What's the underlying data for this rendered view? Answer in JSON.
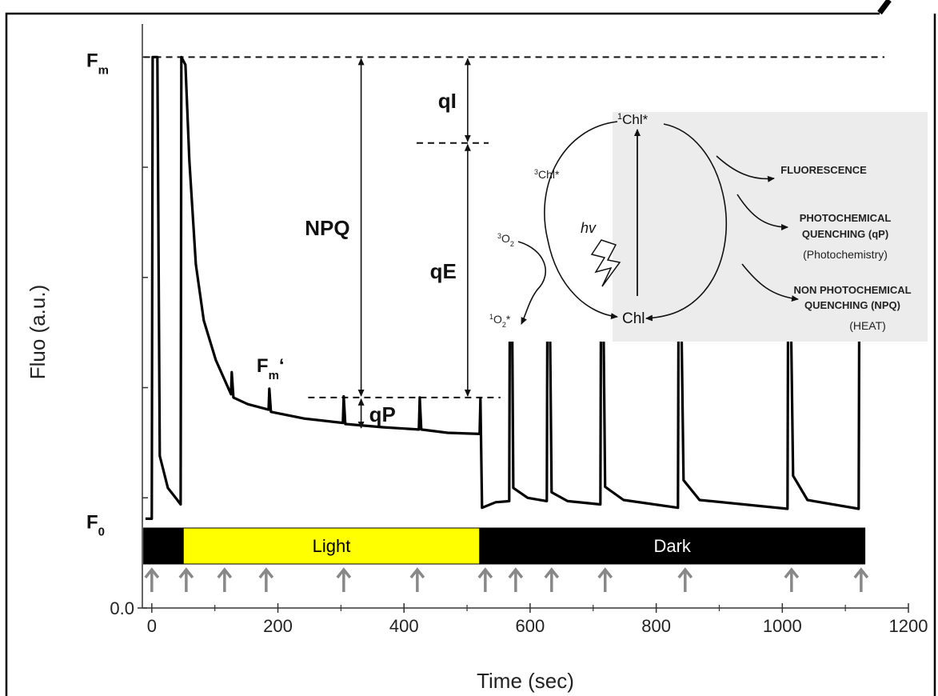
{
  "chart_data": {
    "type": "line",
    "y_title": "Fluo (a.u.)",
    "x_title": "Time (sec)",
    "xlim": [
      -15,
      1200
    ],
    "ylim": [
      0,
      5.3
    ],
    "xticks": [
      0,
      200,
      400,
      600,
      800,
      1000,
      1200
    ],
    "minor_xticks": [
      100,
      300,
      500,
      700,
      900,
      1100
    ],
    "yticks": [
      {
        "value": 0,
        "label": "0.0"
      }
    ],
    "minor_yticks": [
      1,
      2,
      3,
      4,
      5
    ],
    "color": "#000000",
    "x": [
      -10,
      0,
      1.3,
      8.9,
      12.7,
      25.4,
      40.6,
      45.7,
      46.9,
      53.3,
      59.6,
      69.8,
      82.4,
      101.5,
      125.6,
      126.8,
      129.4,
      152.2,
      185.2,
      186.4,
      189.0,
      241.0,
      303.1,
      304.4,
      306.9,
      367.8,
      423.6,
      424.9,
      427.4,
      469.3,
      520.0,
      521.2,
      523.8,
      545.3,
      566.9,
      568.2,
      570.7,
      573.3,
      596.2,
      626.5,
      627.8,
      630.3,
      634.1,
      659.5,
      711.5,
      712.7,
      715.2,
      719.0,
      748.3,
      834.5,
      835.8,
      838.3,
      843.4,
      868.7,
      1008.2,
      1009.5,
      1012.0,
      1017.1,
      1039.9,
      1121.1,
      1122.4,
      1125.0
    ],
    "values": [
      0.81,
      0.81,
      5.0,
      5.0,
      1.38,
      1.09,
      0.98,
      0.94,
      5.0,
      4.93,
      4.06,
      3.12,
      2.61,
      2.25,
      1.94,
      2.14,
      1.91,
      1.85,
      1.8,
      1.99,
      1.78,
      1.72,
      1.68,
      1.92,
      1.67,
      1.64,
      1.62,
      1.91,
      1.62,
      1.59,
      1.58,
      1.9,
      0.91,
      0.96,
      0.97,
      3.33,
      3.33,
      1.09,
      1.0,
      0.97,
      3.33,
      3.33,
      1.05,
      0.97,
      0.94,
      3.33,
      3.33,
      1.1,
      0.98,
      0.91,
      3.33,
      3.33,
      1.16,
      0.98,
      0.9,
      3.33,
      3.33,
      1.2,
      0.98,
      0.9,
      3.33,
      3.33
    ],
    "y_labels": [
      {
        "text": "F",
        "sub": "m",
        "value": 5.0
      },
      {
        "text": "F",
        "sub": "0",
        "value": 0.81
      }
    ],
    "fm_prime": {
      "text": "F",
      "sub": "m",
      "prime": "‘",
      "x": 184,
      "y": 2.14
    },
    "hlines": [
      {
        "value": 5.0,
        "start": -13,
        "end": 1162
      },
      {
        "value": 4.22,
        "start": 420,
        "end": 547
      },
      {
        "value": 1.91,
        "start": 248,
        "end": 553
      }
    ],
    "quenching": [
      {
        "label": "NPQ",
        "x": 332,
        "from": 5.0,
        "to": 1.91,
        "side": "left"
      },
      {
        "label": "qP",
        "x": 332,
        "from": 1.91,
        "to": 1.62,
        "side": "right"
      },
      {
        "label": "qI",
        "x": 501,
        "from": 5.0,
        "to": 4.22,
        "side": "left"
      },
      {
        "label": "qE",
        "x": 501,
        "from": 4.22,
        "to": 1.91,
        "side": "left"
      }
    ],
    "periods": [
      {
        "start": -13,
        "end": 50,
        "color": "#000000"
      },
      {
        "start": 50,
        "end": 520,
        "color": "#ffff00",
        "label": "Light"
      },
      {
        "start": 520,
        "end": 1131,
        "color": "#000000",
        "label": "Dark"
      }
    ],
    "pulse_times": [
      0,
      54.6,
      115.4,
      181.4,
      304.4,
      421.1,
      528.9,
      577.1,
      634.1,
      719.0,
      845.9,
      1014.6,
      1125.0
    ],
    "pulse_color": "#888888"
  },
  "inset": {
    "singlet": {
      "sup": "1",
      "text": "Chl*"
    },
    "triplet": {
      "sup": "3",
      "text": "Chl*"
    },
    "light": "hv",
    "oxygen": {
      "sup": "3",
      "text": "O",
      "sub": "2"
    },
    "singlet_oxygen": {
      "sup": "1",
      "text": "O",
      "sub": "2",
      "suffix": "*"
    },
    "ground": "Chl",
    "fluorescence": "FLUORESCENCE",
    "photochemical": [
      "PHOTOCHEMICAL",
      "QUENCHING (qP)",
      "(Photochemistry)"
    ],
    "nonphotochemical": [
      "NON PHOTOCHEMICAL",
      "QUENCHING (NPQ)",
      "(HEAT)"
    ]
  }
}
